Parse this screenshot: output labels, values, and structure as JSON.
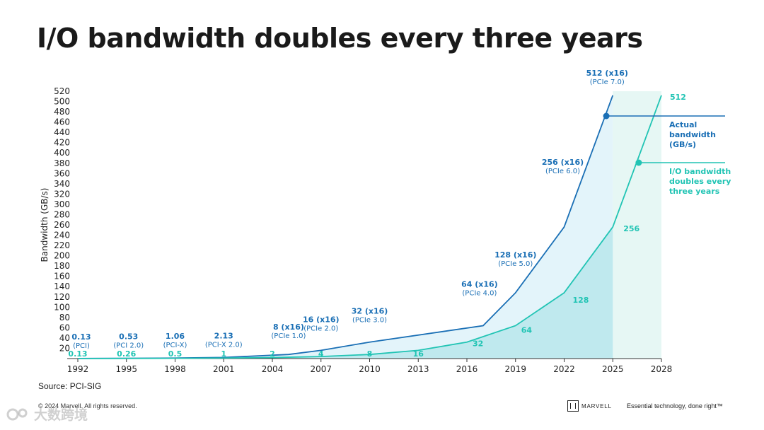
{
  "title": "I/O bandwidth doubles every three years",
  "source": "Source: PCI-SIG",
  "copyright": "© 2024 Marvell. All rights reserved.",
  "brand": "MARVELL",
  "tagline": "Essential technology, done right™",
  "watermark": "大数跨境",
  "colors": {
    "actual": "#1a6fb5",
    "doubling": "#21c4b4",
    "actual_fill": "#e3f4fa",
    "doubling_fill": "#bfe9ee",
    "projection_fill": "#e6f7f4"
  },
  "chart_data": {
    "type": "line",
    "ylabel": "Bandwidth (GB/s)",
    "ylim": [
      0,
      520
    ],
    "yticks": [
      20,
      40,
      60,
      80,
      100,
      120,
      140,
      160,
      180,
      200,
      220,
      240,
      260,
      280,
      300,
      320,
      340,
      360,
      380,
      400,
      420,
      440,
      460,
      480,
      500,
      520
    ],
    "xlim": [
      1992,
      2028
    ],
    "xticks": [
      "1992",
      "1995",
      "1998",
      "2001",
      "2004",
      "2007",
      "2010",
      "2013",
      "2016",
      "2019",
      "2022",
      "2025",
      "2028"
    ],
    "series": [
      {
        "name": "Actual bandwidth (GB/s)",
        "legend": [
          "Actual",
          "bandwidth",
          "(GB/s)"
        ],
        "points": [
          {
            "x": 1992,
            "y": 0.13,
            "label": "0.13",
            "sublabel": "(PCI)"
          },
          {
            "x": 1995,
            "y": 0.53,
            "label": "0.53",
            "sublabel": "(PCI 2.0)"
          },
          {
            "x": 1998,
            "y": 1.06,
            "label": "1.06",
            "sublabel": "(PCI-X)"
          },
          {
            "x": 2001,
            "y": 2.13,
            "label": "2.13",
            "sublabel": "(PCI-X 2.0)"
          },
          {
            "x": 2005,
            "y": 8,
            "label": "8 (x16)",
            "sublabel": "(PCIe 1.0)"
          },
          {
            "x": 2007,
            "y": 16,
            "label": "16 (x16)",
            "sublabel": "(PCIe 2.0)"
          },
          {
            "x": 2010,
            "y": 32,
            "label": "32 (x16)",
            "sublabel": "(PCIe 3.0)"
          },
          {
            "x": 2017,
            "y": 64,
            "label": "64 (x16)",
            "sublabel": "(PCIe 4.0)"
          },
          {
            "x": 2019,
            "y": 128,
            "label": "128 (x16)",
            "sublabel": "(PCIe 5.0)"
          },
          {
            "x": 2022,
            "y": 256,
            "label": "256 (x16)",
            "sublabel": "(PCIe 6.0)"
          },
          {
            "x": 2025,
            "y": 512,
            "label": "512 (x16)",
            "sublabel": "(PCIe 7.0)"
          }
        ]
      },
      {
        "name": "I/O bandwidth doubles every three years",
        "legend": [
          "I/O bandwidth",
          "doubles every",
          "three years"
        ],
        "points": [
          {
            "x": 1992,
            "y": 0.13,
            "label": "0.13"
          },
          {
            "x": 1995,
            "y": 0.26,
            "label": "0.26"
          },
          {
            "x": 1998,
            "y": 0.5,
            "label": "0.5"
          },
          {
            "x": 2001,
            "y": 1,
            "label": "1"
          },
          {
            "x": 2004,
            "y": 2,
            "label": "2"
          },
          {
            "x": 2007,
            "y": 4,
            "label": "4"
          },
          {
            "x": 2010,
            "y": 8,
            "label": "8"
          },
          {
            "x": 2013,
            "y": 16,
            "label": "16"
          },
          {
            "x": 2016,
            "y": 32,
            "label": "32"
          },
          {
            "x": 2019,
            "y": 64,
            "label": "64"
          },
          {
            "x": 2022,
            "y": 128,
            "label": "128"
          },
          {
            "x": 2025,
            "y": 256,
            "label": "256"
          },
          {
            "x": 2028,
            "y": 512,
            "label": "512"
          }
        ]
      }
    ]
  }
}
